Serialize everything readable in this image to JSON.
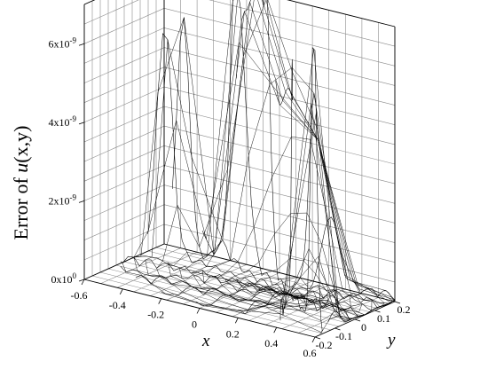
{
  "chart_data": {
    "type": "surface",
    "zlabel_prefix": "Error of ",
    "zlabel_func": "u",
    "zlabel_args": "(x,y)",
    "xlabel": "x",
    "ylabel": "y",
    "x_ticks": [
      {
        "value": -0.6,
        "label": "-0.6"
      },
      {
        "value": -0.4,
        "label": "-0.4"
      },
      {
        "value": -0.2,
        "label": "-0.2"
      },
      {
        "value": 0,
        "label": "0"
      },
      {
        "value": 0.2,
        "label": "0.2"
      },
      {
        "value": 0.4,
        "label": "0.4"
      },
      {
        "value": 0.6,
        "label": "0.6"
      }
    ],
    "y_ticks": [
      {
        "value": -0.2,
        "label": "-0.2"
      },
      {
        "value": -0.1,
        "label": "-0.1"
      },
      {
        "value": 0,
        "label": "0"
      },
      {
        "value": 0.1,
        "label": "0.1"
      },
      {
        "value": 0.2,
        "label": "0.2"
      }
    ],
    "z_ticks": [
      {
        "value": 0,
        "mant": "0x10",
        "exp": "0"
      },
      {
        "value": 2e-09,
        "mant": "2x10",
        "exp": "-9"
      },
      {
        "value": 4e-09,
        "mant": "4x10",
        "exp": "-9"
      },
      {
        "value": 6e-09,
        "mant": "6x10",
        "exp": "-9"
      }
    ],
    "xlim": [
      -0.6,
      0.6
    ],
    "ylim": [
      -0.2,
      0.2
    ],
    "zlim": [
      0,
      7e-09
    ],
    "grid": true,
    "peaks": [
      {
        "x": -0.5,
        "y": 0.12,
        "z": 6.1e-09
      },
      {
        "x": -0.47,
        "y": 0.16,
        "z": 5.6e-09
      },
      {
        "x": 0.47,
        "y": -0.14,
        "z": 6.3e-09
      },
      {
        "x": 0.5,
        "y": -0.1,
        "z": 5.9e-09
      },
      {
        "x": -0.2,
        "y": 0.18,
        "z": 7e-09
      },
      {
        "x": -0.12,
        "y": 0.18,
        "z": 6.8e-09
      },
      {
        "x": -0.05,
        "y": 0.18,
        "z": 6e-09
      },
      {
        "x": 0.05,
        "y": 0.18,
        "z": 5.6e-09
      },
      {
        "x": 0.15,
        "y": 0.18,
        "z": 5e-09
      },
      {
        "x": 0.25,
        "y": 0.18,
        "z": 4.5e-09
      }
    ]
  }
}
